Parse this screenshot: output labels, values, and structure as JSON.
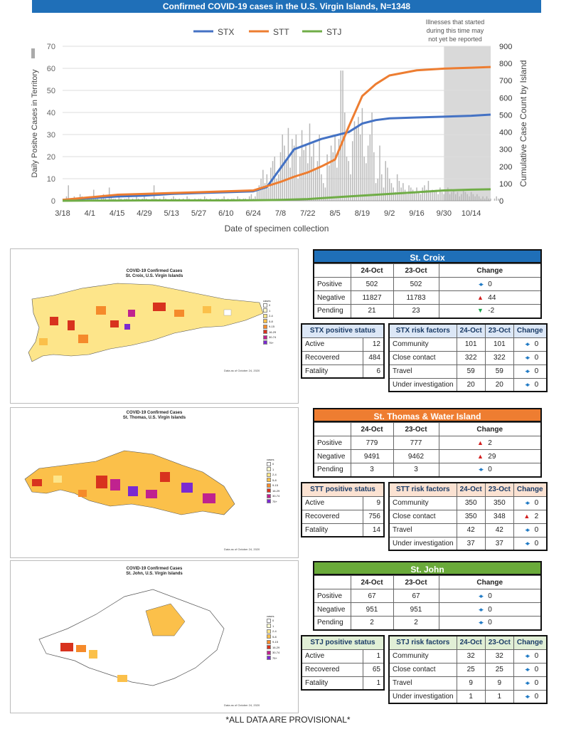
{
  "header": {
    "title": "Confirmed COVID-19 cases in the U.S. Virgin Islands, N=1348"
  },
  "chart_data": {
    "type": "line",
    "xlabel": "Date of specimen collection",
    "ylabel_left": "Daily Positve Cases in Territory",
    "ylabel_right": "Cumulative Case Count by Island",
    "ylim_left": [
      0,
      70
    ],
    "ylim_right": [
      0,
      900
    ],
    "yticks_left": [
      "0",
      "10",
      "20",
      "30",
      "40",
      "50",
      "60",
      "70"
    ],
    "yticks_right": [
      "0",
      "100",
      "200",
      "300",
      "400",
      "500",
      "600",
      "700",
      "800",
      "900"
    ],
    "xtick_labels": [
      "3/18",
      "4/1",
      "4/15",
      "4/29",
      "5/13",
      "5/27",
      "6/10",
      "6/24",
      "7/8",
      "7/22",
      "8/5",
      "8/19",
      "9/2",
      "9/16",
      "9/30",
      "10/14"
    ],
    "shade_note": "Illnesses that started during this time may not yet be reported",
    "shade_from": "9/30",
    "grid": true,
    "legend_position": "top",
    "series": [
      {
        "name": "STX",
        "color": "#4472c4",
        "axis": "right",
        "x": [
          "3/18",
          "4/1",
          "4/15",
          "4/29",
          "5/13",
          "5/27",
          "6/10",
          "6/24",
          "7/1",
          "7/8",
          "7/15",
          "7/22",
          "7/29",
          "8/5",
          "8/12",
          "8/19",
          "8/26",
          "9/2",
          "9/16",
          "9/30",
          "10/14",
          "10/24"
        ],
        "y": [
          5,
          15,
          25,
          30,
          40,
          45,
          50,
          55,
          80,
          190,
          300,
          330,
          360,
          380,
          400,
          450,
          470,
          480,
          485,
          490,
          495,
          502
        ]
      },
      {
        "name": "STT",
        "color": "#ed7d31",
        "axis": "right",
        "x": [
          "3/18",
          "4/1",
          "4/15",
          "4/29",
          "5/13",
          "5/27",
          "6/10",
          "6/24",
          "7/8",
          "7/15",
          "7/22",
          "7/29",
          "8/5",
          "8/12",
          "8/19",
          "8/26",
          "9/2",
          "9/16",
          "9/30",
          "10/14",
          "10/24"
        ],
        "y": [
          5,
          20,
          35,
          40,
          45,
          50,
          55,
          60,
          110,
          140,
          165,
          200,
          240,
          430,
          610,
          680,
          730,
          760,
          770,
          775,
          779
        ]
      },
      {
        "name": "STJ",
        "color": "#70ad47",
        "axis": "right",
        "x": [
          "3/18",
          "4/1",
          "4/15",
          "4/29",
          "5/13",
          "5/27",
          "6/10",
          "6/24",
          "7/8",
          "7/22",
          "8/5",
          "8/19",
          "9/2",
          "9/16",
          "9/30",
          "10/14",
          "10/24"
        ],
        "y": [
          0,
          1,
          1,
          2,
          2,
          2,
          2,
          3,
          5,
          10,
          20,
          30,
          40,
          50,
          60,
          65,
          67
        ]
      }
    ],
    "daily_bars": {
      "name": "Daily positive cases",
      "color": "#b8b8b8",
      "values": [
        0,
        1,
        2,
        7,
        1,
        0,
        2,
        1,
        0,
        3,
        2,
        1,
        0,
        1,
        2,
        1,
        5,
        2,
        1,
        0,
        1,
        3,
        1,
        0,
        6,
        2,
        1,
        1,
        0,
        2,
        1,
        0,
        1,
        1,
        2,
        0,
        1,
        0,
        3,
        1,
        0,
        1,
        2,
        1,
        0,
        0,
        1,
        7,
        1,
        0,
        1,
        0,
        2,
        1,
        0,
        0,
        1,
        2,
        1,
        0,
        1,
        0,
        1,
        0,
        2,
        1,
        0,
        0,
        1,
        0,
        1,
        1,
        0,
        2,
        1,
        0,
        1,
        0,
        0,
        1,
        1,
        0,
        1,
        2,
        0,
        1,
        0,
        1,
        1,
        0,
        2,
        1,
        0,
        1,
        1,
        0,
        2,
        3,
        1,
        2,
        5,
        7,
        10,
        14,
        8,
        12,
        6,
        15,
        18,
        20,
        10,
        12,
        22,
        30,
        25,
        18,
        33,
        15,
        28,
        25,
        30,
        10,
        20,
        32,
        23,
        25,
        17,
        35,
        20,
        26,
        14,
        18,
        30,
        12,
        8,
        6,
        21,
        16,
        25,
        22,
        30,
        15,
        28,
        59,
        59,
        40,
        20,
        18,
        12,
        27,
        36,
        33,
        38,
        30,
        42,
        20,
        17,
        25,
        30,
        40,
        22,
        8,
        10,
        25,
        12,
        6,
        18,
        15,
        10,
        8,
        6,
        4,
        12,
        9,
        6,
        8,
        5,
        3,
        7,
        6,
        5,
        4,
        6,
        4,
        3,
        6,
        7,
        5,
        9,
        4,
        5,
        4,
        5,
        3,
        6,
        4,
        3,
        5,
        6,
        3,
        4,
        5,
        3,
        4,
        2,
        3,
        5,
        4,
        3,
        2,
        4,
        3,
        2,
        3,
        2,
        1,
        2,
        1,
        2,
        1,
        1,
        0,
        1,
        2,
        1
      ]
    }
  },
  "maps": [
    {
      "title_line1": "COVID-19 Confirmed Cases",
      "title_line2": "St. Croix, U.S. Virgin Islands",
      "date_note": "Data as of October 24, 2020",
      "legend_title": "cases"
    },
    {
      "title_line1": "COVID-19 Confirmed Cases",
      "title_line2": "St. Thomas, U.S. Virgin Islands",
      "date_note": "Data as of October 24, 2020",
      "legend_title": "cases"
    },
    {
      "title_line1": "COVID-19 Confirmed Cases",
      "title_line2": "St. John, U.S. Virgin Islands",
      "date_note": "Data as of October 24, 2020",
      "legend_title": "cases"
    }
  ],
  "map_legend": [
    {
      "label": "0",
      "color": "#ffffff"
    },
    {
      "label": "1",
      "color": "#fffbd0"
    },
    {
      "label": "2-4",
      "color": "#fde58a"
    },
    {
      "label": "5-8",
      "color": "#fbc04a"
    },
    {
      "label": "9-15",
      "color": "#f58a2b"
    },
    {
      "label": "16-29",
      "color": "#d8321e"
    },
    {
      "label": "30-74",
      "color": "#c0228f"
    },
    {
      "label": "75+",
      "color": "#7b2ad1"
    }
  ],
  "islands": [
    {
      "name": "St. Croix",
      "color": "#1f6fb8",
      "sub_bg": "#dce7f6",
      "col_a": "24-Oct",
      "col_b": "23-Oct",
      "col_change": "Change",
      "rows": [
        {
          "label": "Positive",
          "a": "502",
          "b": "502",
          "icon": "lr",
          "change": "0"
        },
        {
          "label": "Negative",
          "a": "11827",
          "b": "11783",
          "icon": "up",
          "change": "44"
        },
        {
          "label": "Pending",
          "a": "21",
          "b": "23",
          "icon": "down",
          "change": "-2"
        }
      ],
      "status_title": "STX positive status",
      "status": [
        {
          "label": "Active",
          "value": "12"
        },
        {
          "label": "Recovered",
          "value": "484"
        },
        {
          "label": "Fatality",
          "value": "6"
        }
      ],
      "risk_title": "STX risk factors",
      "risk": [
        {
          "label": "Community",
          "a": "101",
          "b": "101",
          "icon": "lr",
          "change": "0"
        },
        {
          "label": "Close contact",
          "a": "322",
          "b": "322",
          "icon": "lr",
          "change": "0"
        },
        {
          "label": "Travel",
          "a": "59",
          "b": "59",
          "icon": "lr",
          "change": "0"
        },
        {
          "label": "Under investigation",
          "a": "20",
          "b": "20",
          "icon": "lr",
          "change": "0"
        }
      ]
    },
    {
      "name": "St. Thomas & Water Island",
      "color": "#ee7d31",
      "sub_bg": "#fbe2d2",
      "col_a": "24-Oct",
      "col_b": "23-Oct",
      "col_change": "Change",
      "rows": [
        {
          "label": "Positive",
          "a": "779",
          "b": "777",
          "icon": "up",
          "change": "2"
        },
        {
          "label": "Negative",
          "a": "9491",
          "b": "9462",
          "icon": "up",
          "change": "29"
        },
        {
          "label": "Pending",
          "a": "3",
          "b": "3",
          "icon": "lr",
          "change": "0"
        }
      ],
      "status_title": "STT positive status",
      "status": [
        {
          "label": "Active",
          "value": "9"
        },
        {
          "label": "Recovered",
          "value": "756"
        },
        {
          "label": "Fatality",
          "value": "14"
        }
      ],
      "risk_title": "STT risk factors",
      "risk": [
        {
          "label": "Community",
          "a": "350",
          "b": "350",
          "icon": "lr",
          "change": "0"
        },
        {
          "label": "Close contact",
          "a": "350",
          "b": "348",
          "icon": "up",
          "change": "2"
        },
        {
          "label": "Travel",
          "a": "42",
          "b": "42",
          "icon": "lr",
          "change": "0"
        },
        {
          "label": "Under investigation",
          "a": "37",
          "b": "37",
          "icon": "lr",
          "change": "0"
        }
      ]
    },
    {
      "name": "St. John",
      "color": "#6aaa3a",
      "sub_bg": "#e1efd6",
      "col_a": "24-Oct",
      "col_b": "23-Oct",
      "col_change": "Change",
      "rows": [
        {
          "label": "Positive",
          "a": "67",
          "b": "67",
          "icon": "lr",
          "change": "0"
        },
        {
          "label": "Negative",
          "a": "951",
          "b": "951",
          "icon": "lr",
          "change": "0"
        },
        {
          "label": "Pending",
          "a": "2",
          "b": "2",
          "icon": "lr",
          "change": "0"
        }
      ],
      "status_title": "STJ positive status",
      "status": [
        {
          "label": "Active",
          "value": "1"
        },
        {
          "label": "Recovered",
          "value": "65"
        },
        {
          "label": "Fatality",
          "value": "1"
        }
      ],
      "risk_title": "STJ risk factors",
      "risk": [
        {
          "label": "Community",
          "a": "32",
          "b": "32",
          "icon": "lr",
          "change": "0"
        },
        {
          "label": "Close contact",
          "a": "25",
          "b": "25",
          "icon": "lr",
          "change": "0"
        },
        {
          "label": "Travel",
          "a": "9",
          "b": "9",
          "icon": "lr",
          "change": "0"
        },
        {
          "label": "Under investigation",
          "a": "1",
          "b": "1",
          "icon": "lr",
          "change": "0"
        }
      ]
    }
  ],
  "footer": {
    "note": "*ALL DATA ARE PROVISIONAL*"
  }
}
